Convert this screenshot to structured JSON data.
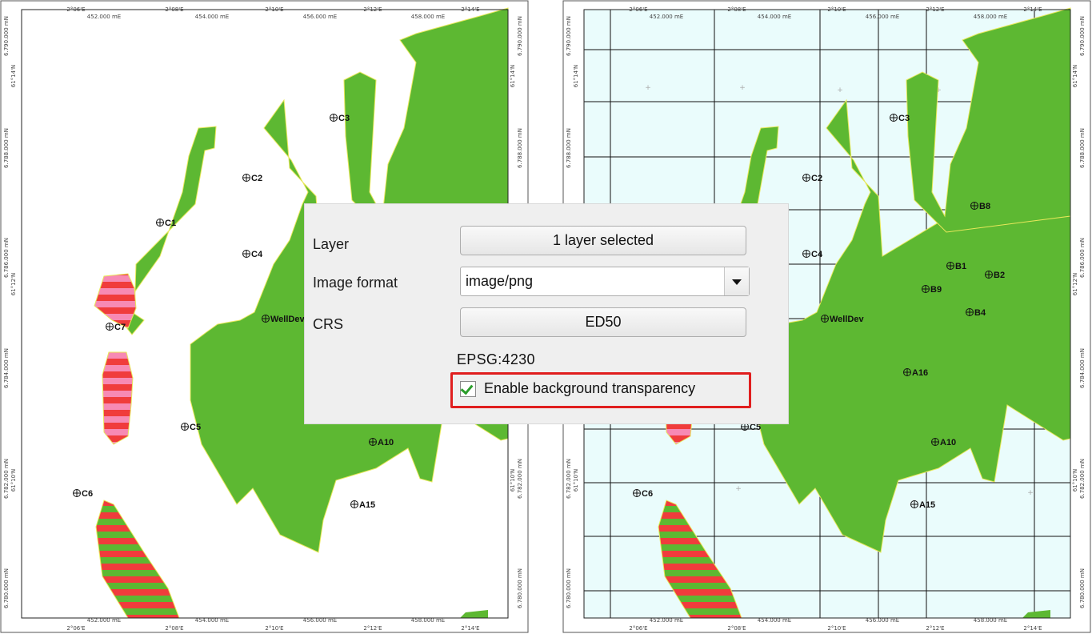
{
  "map_left": {
    "top_easting": [
      "452.000 mE",
      "454.000 mE",
      "456.000 mE",
      "458.000 mE"
    ],
    "top_longitude": [
      "2°06'E",
      "2°08'E",
      "2°10'E",
      "2°12'E",
      "2°14'E"
    ],
    "bottom_easting": [
      "452.000 mE",
      "454.000 mE",
      "456.000 mE",
      "458.000 mE"
    ],
    "bottom_longitude": [
      "2°06'E",
      "2°08'E",
      "2°10'E",
      "2°12'E",
      "2°14'E"
    ],
    "northing": [
      "6.790.000 mN",
      "6.788.000 mN",
      "6.786.000 mN",
      "6.784.000 mN",
      "6.782.000 mN",
      "6.780.000 mN"
    ],
    "latitude": [
      "61°14'N",
      "61°12'N",
      "61°10'N"
    ],
    "wells": [
      "C3",
      "C2",
      "C1",
      "C4",
      "C7",
      "WellDev",
      "C5",
      "A10",
      "C6",
      "A15"
    ]
  },
  "map_right": {
    "top_easting": [
      "452.000 mE",
      "454.000 mE",
      "456.000 mE",
      "458.000 mE"
    ],
    "top_longitude": [
      "2°06'E",
      "2°08'E",
      "2°10'E",
      "2°12'E",
      "2°14'E"
    ],
    "bottom_easting": [
      "452.000 mE",
      "454.000 mE",
      "456.000 mE",
      "458.000 mE"
    ],
    "bottom_longitude": [
      "2°06'E",
      "2°08'E",
      "2°10'E",
      "2°12'E",
      "2°14'E"
    ],
    "northing": [
      "6.790.000 mN",
      "6.788.000 mN",
      "6.786.000 mN",
      "6.784.000 mN",
      "6.782.000 mN",
      "6.780.000 mN"
    ],
    "latitude": [
      "61°14'N",
      "61°12'N",
      "61°10'N"
    ],
    "wells": [
      "C3",
      "C2",
      "B8",
      "B1",
      "B2",
      "C4",
      "B9",
      "B4",
      "WellDev",
      "A16",
      "C5",
      "A10",
      "C6",
      "A15"
    ]
  },
  "dialog": {
    "layer_label": "Layer",
    "layer_button": "1 layer selected",
    "format_label": "Image format",
    "format_value": "image/png",
    "crs_label": "CRS",
    "crs_button": "ED50",
    "epsg": "EPSG:4230",
    "transparency_label": "Enable background transparency",
    "transparency_checked": true
  },
  "colors": {
    "land": "#5db832",
    "land_outline": "#e8e85a",
    "sea_transparent": "#ffffff",
    "sea_filled": "#eafcfc",
    "hatch_red": "#f03c3c",
    "hatch_pink": "#f78ab4",
    "hatch_green": "#5db832",
    "highlight": "#e01e1e"
  }
}
